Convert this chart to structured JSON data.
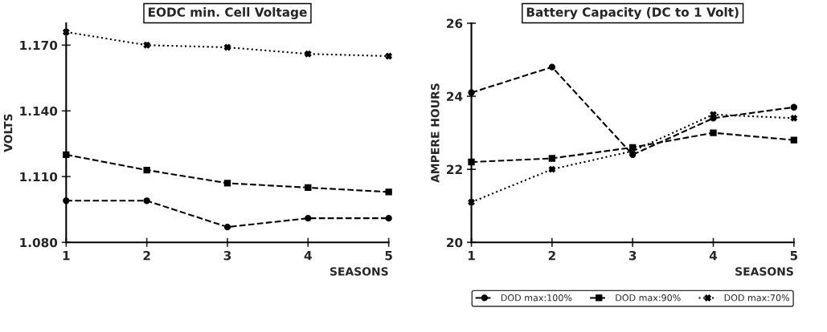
{
  "chart_data": [
    {
      "type": "line",
      "title": "EODC min. Cell Voltage",
      "xlabel": "SEASONS",
      "ylabel": "VOLTS",
      "x": [
        1,
        2,
        3,
        4,
        5
      ],
      "xlim": [
        1,
        5
      ],
      "xticks": [
        1,
        2,
        3,
        4,
        5
      ],
      "ylim": [
        1.08,
        1.18
      ],
      "yticks": [
        {
          "value": 1.08,
          "label": "1.080"
        },
        {
          "value": 1.11,
          "label": "1.110"
        },
        {
          "value": 1.14,
          "label": "1.140"
        },
        {
          "value": 1.17,
          "label": "1.170"
        }
      ],
      "grid": false,
      "legend": false,
      "series": [
        {
          "color": "#000000",
          "marker": "circle",
          "line_style": "dashed",
          "values": [
            1.099,
            1.099,
            1.087,
            1.091,
            1.091
          ]
        },
        {
          "color": "#000000",
          "marker": "square",
          "line_style": "dashed",
          "values": [
            1.12,
            1.113,
            1.107,
            1.105,
            1.103
          ]
        },
        {
          "color": "#000000",
          "marker": "cross",
          "line_style": "dotted",
          "values": [
            1.176,
            1.17,
            1.169,
            1.166,
            1.165
          ]
        }
      ]
    },
    {
      "type": "line",
      "title": "Battery Capacity (DC to 1 Volt)",
      "xlabel": "SEASONS",
      "ylabel": "AMPERE HOURS",
      "x": [
        1,
        2,
        3,
        4,
        5
      ],
      "xlim": [
        1,
        5
      ],
      "xticks": [
        1,
        2,
        3,
        4,
        5
      ],
      "ylim": [
        20,
        26
      ],
      "yticks": [
        20,
        22,
        24,
        26
      ],
      "grid": false,
      "legend": "bottom",
      "series": [
        {
          "name": "DOD max:100%",
          "color": "#000000",
          "marker": "circle",
          "line_style": "dashed",
          "values": [
            24.1,
            24.8,
            22.4,
            23.4,
            23.7
          ]
        },
        {
          "name": "DOD max:90%",
          "color": "#000000",
          "marker": "square",
          "line_style": "dashed",
          "values": [
            22.2,
            22.3,
            22.6,
            23.0,
            22.8
          ]
        },
        {
          "name": "DOD max:70%",
          "color": "#000000",
          "marker": "cross",
          "line_style": "dotted",
          "values": [
            21.1,
            22.0,
            22.5,
            23.5,
            23.4
          ]
        }
      ]
    }
  ]
}
